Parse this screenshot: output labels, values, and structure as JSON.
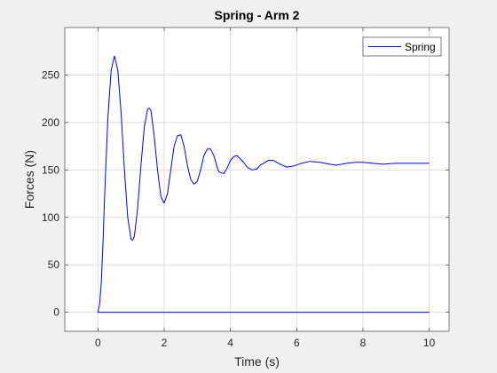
{
  "chart_data": {
    "type": "line",
    "title": "Spring - Arm 2",
    "xlabel": "Time (s)",
    "ylabel": "Forces (N)",
    "xlim": [
      -1,
      10.6
    ],
    "ylim": [
      -20,
      300
    ],
    "xticks": [
      0,
      2,
      4,
      6,
      8,
      10
    ],
    "xtick_labels": [
      "0",
      "2",
      "4",
      "6",
      "8",
      "10"
    ],
    "yticks": [
      0,
      50,
      100,
      150,
      200,
      250
    ],
    "ytick_labels": [
      "0",
      "50",
      "100",
      "150",
      "200",
      "250"
    ],
    "grid": true,
    "legend": {
      "position": "top-right",
      "entries": [
        "Spring"
      ]
    },
    "series": [
      {
        "name": "Spring",
        "color": "#0000ff",
        "x": [
          0,
          0.05,
          0.1,
          0.15,
          0.2,
          0.3,
          0.4,
          0.5,
          0.6,
          0.7,
          0.8,
          0.9,
          1.0,
          1.05,
          1.1,
          1.2,
          1.3,
          1.4,
          1.5,
          1.55,
          1.6,
          1.7,
          1.8,
          1.9,
          2.0,
          2.1,
          2.2,
          2.3,
          2.4,
          2.5,
          2.6,
          2.7,
          2.8,
          2.9,
          3.0,
          3.1,
          3.2,
          3.3,
          3.4,
          3.5,
          3.6,
          3.65,
          3.8,
          3.9,
          4.0,
          4.1,
          4.2,
          4.4,
          4.5,
          4.65,
          4.8,
          4.9,
          5.15,
          5.3,
          5.5,
          5.7,
          5.9,
          6.15,
          6.4,
          6.7,
          7.0,
          7.2,
          7.5,
          7.8,
          8.0,
          8.3,
          8.6,
          9.0,
          9.5,
          10.0
        ],
        "y": [
          0,
          8,
          30,
          70,
          120,
          205,
          255,
          270,
          255,
          210,
          150,
          100,
          77,
          76,
          80,
          110,
          155,
          195,
          214,
          215,
          213,
          185,
          150,
          122,
          115,
          125,
          150,
          175,
          186,
          187,
          175,
          155,
          140,
          135,
          138,
          150,
          165,
          172,
          172,
          165,
          153,
          148,
          146,
          152,
          160,
          164,
          165,
          158,
          153,
          150,
          151,
          155,
          160,
          160,
          156,
          153,
          154,
          157,
          159,
          158,
          156,
          155,
          157,
          158,
          158,
          157,
          156,
          157,
          157,
          157
        ]
      },
      {
        "name": "",
        "color": "#0000ff",
        "x": [
          0,
          10
        ],
        "y": [
          0,
          0
        ]
      }
    ]
  }
}
